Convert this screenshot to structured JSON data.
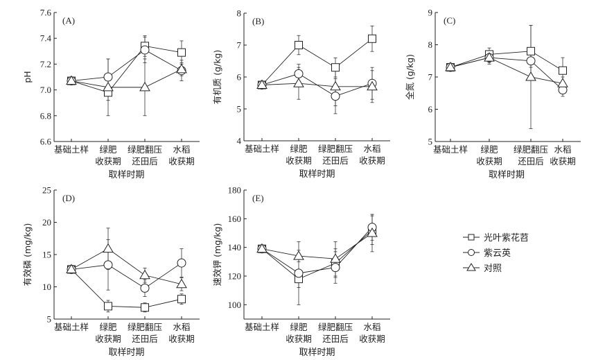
{
  "chart_data": [
    {
      "type": "line",
      "panel_label": "(A)",
      "ylabel": "pH",
      "xlabel": "取样时期",
      "categories": [
        [
          "基础土样"
        ],
        [
          "绿肥",
          "收获期"
        ],
        [
          "绿肥翻压",
          "还田后"
        ],
        [
          "水稻",
          "收获期"
        ]
      ],
      "ylim": [
        6.6,
        7.6
      ],
      "yticks": [
        "6.6",
        "6.8",
        "7.0",
        "7.2",
        "7.4",
        "7.6"
      ],
      "ytick_values": [
        6.6,
        6.8,
        7.0,
        7.2,
        7.4,
        7.6
      ],
      "series": [
        {
          "name": "光叶紫花苕",
          "marker": "square",
          "values": [
            7.07,
            6.98,
            7.34,
            7.29
          ],
          "errors": [
            0,
            0.06,
            0.08,
            0.09
          ]
        },
        {
          "name": "紫云英",
          "marker": "circle",
          "values": [
            7.07,
            7.1,
            7.31,
            7.15
          ],
          "errors": [
            0,
            0.14,
            0.1,
            0.08
          ]
        },
        {
          "name": "对照",
          "marker": "triangle",
          "values": [
            7.07,
            7.02,
            7.02,
            7.16
          ],
          "errors": [
            0,
            0.22,
            0.22,
            0.05
          ]
        }
      ]
    },
    {
      "type": "line",
      "panel_label": "(B)",
      "ylabel": "有机质 (g/kg)",
      "xlabel": "取样时期",
      "categories": [
        [
          "基础土样"
        ],
        [
          "绿肥",
          "收获期"
        ],
        [
          "绿肥翻压",
          "还田后"
        ],
        [
          "水稻",
          "收获期"
        ]
      ],
      "ylim": [
        4,
        8
      ],
      "yticks": [
        "4",
        "5",
        "6",
        "7",
        "8"
      ],
      "ytick_values": [
        4,
        5,
        6,
        7,
        8
      ],
      "series": [
        {
          "name": "光叶紫花苕",
          "marker": "square",
          "values": [
            5.75,
            7.0,
            6.3,
            7.2
          ],
          "errors": [
            0,
            0.3,
            0.3,
            0.4
          ]
        },
        {
          "name": "紫云英",
          "marker": "circle",
          "values": [
            5.75,
            6.1,
            5.4,
            5.8
          ],
          "errors": [
            0,
            0.3,
            0.55,
            0.5
          ]
        },
        {
          "name": "对照",
          "marker": "triangle",
          "values": [
            5.75,
            5.8,
            5.7,
            5.7
          ],
          "errors": [
            0,
            0.5,
            0.6,
            0.5
          ]
        }
      ]
    },
    {
      "type": "line",
      "panel_label": "(C)",
      "ylabel": "全氮 (g/kg)",
      "xlabel": "取样时期",
      "categories": [
        [
          "基础土样"
        ],
        [
          "绿肥",
          "收获期"
        ],
        [
          "绿肥翻压",
          "还田后"
        ],
        [
          "水稻",
          "收获期"
        ]
      ],
      "ylim": [
        5,
        9
      ],
      "yticks": [
        "5",
        "6",
        "7",
        "8",
        "9"
      ],
      "ytick_values": [
        5,
        6,
        7,
        8,
        9
      ],
      "series": [
        {
          "name": "光叶紫花苕",
          "marker": "square",
          "values": [
            7.3,
            7.7,
            7.8,
            7.2
          ],
          "errors": [
            0,
            0.2,
            0.8,
            0.4
          ]
        },
        {
          "name": "紫云英",
          "marker": "circle",
          "values": [
            7.3,
            7.6,
            7.5,
            6.6
          ],
          "errors": [
            0,
            0.2,
            0.2,
            0.2
          ]
        },
        {
          "name": "对照",
          "marker": "triangle",
          "values": [
            7.3,
            7.6,
            7.0,
            6.8
          ],
          "errors": [
            0,
            0.15,
            1.6,
            0.2
          ]
        }
      ]
    },
    {
      "type": "line",
      "panel_label": "(D)",
      "ylabel": "有效磷 (mg/kg)",
      "xlabel": "取样时期",
      "categories": [
        [
          "基础土样"
        ],
        [
          "绿肥",
          "收获期"
        ],
        [
          "绿肥翻压",
          "还田后"
        ],
        [
          "水稻",
          "收获期"
        ]
      ],
      "ylim": [
        5,
        25
      ],
      "yticks": [
        "5",
        "10",
        "15",
        "20",
        "25"
      ],
      "ytick_values": [
        5,
        10,
        15,
        20,
        25
      ],
      "series": [
        {
          "name": "光叶紫花苕",
          "marker": "square",
          "values": [
            12.7,
            7.0,
            6.8,
            8.1
          ],
          "errors": [
            0,
            0.9,
            0.7,
            0.8
          ]
        },
        {
          "name": "紫云英",
          "marker": "circle",
          "values": [
            12.7,
            13.4,
            9.8,
            13.7
          ],
          "errors": [
            0,
            3.9,
            1.3,
            2.2
          ]
        },
        {
          "name": "对照",
          "marker": "triangle",
          "values": [
            12.7,
            15.9,
            11.8,
            10.4
          ],
          "errors": [
            0,
            3.2,
            1.1,
            1.0
          ]
        }
      ]
    },
    {
      "type": "line",
      "panel_label": "(E)",
      "ylabel": "速效钾 (mg/kg)",
      "xlabel": "取样时期",
      "categories": [
        [
          "基础土样"
        ],
        [
          "绿肥",
          "收获期"
        ],
        [
          "绿肥翻压",
          "还田后"
        ],
        [
          "水稻",
          "收获期"
        ]
      ],
      "ylim": [
        90,
        180
      ],
      "yticks": [
        "100",
        "120",
        "140",
        "160",
        "180"
      ],
      "ytick_values": [
        100,
        120,
        140,
        160,
        180
      ],
      "series": [
        {
          "name": "光叶紫花苕",
          "marker": "square",
          "values": [
            139,
            118,
            129,
            152
          ],
          "errors": [
            0,
            6,
            10,
            10
          ]
        },
        {
          "name": "紫云英",
          "marker": "circle",
          "values": [
            139,
            122,
            126,
            154
          ],
          "errors": [
            0,
            22,
            11,
            9
          ]
        },
        {
          "name": "对照",
          "marker": "triangle",
          "values": [
            139,
            134,
            132,
            150
          ],
          "errors": [
            0,
            4,
            12,
            13
          ]
        }
      ]
    }
  ],
  "legend": {
    "items": [
      {
        "label": "光叶紫花苕",
        "marker": "square"
      },
      {
        "label": "紫云英",
        "marker": "circle"
      },
      {
        "label": "对照",
        "marker": "triangle"
      }
    ]
  }
}
